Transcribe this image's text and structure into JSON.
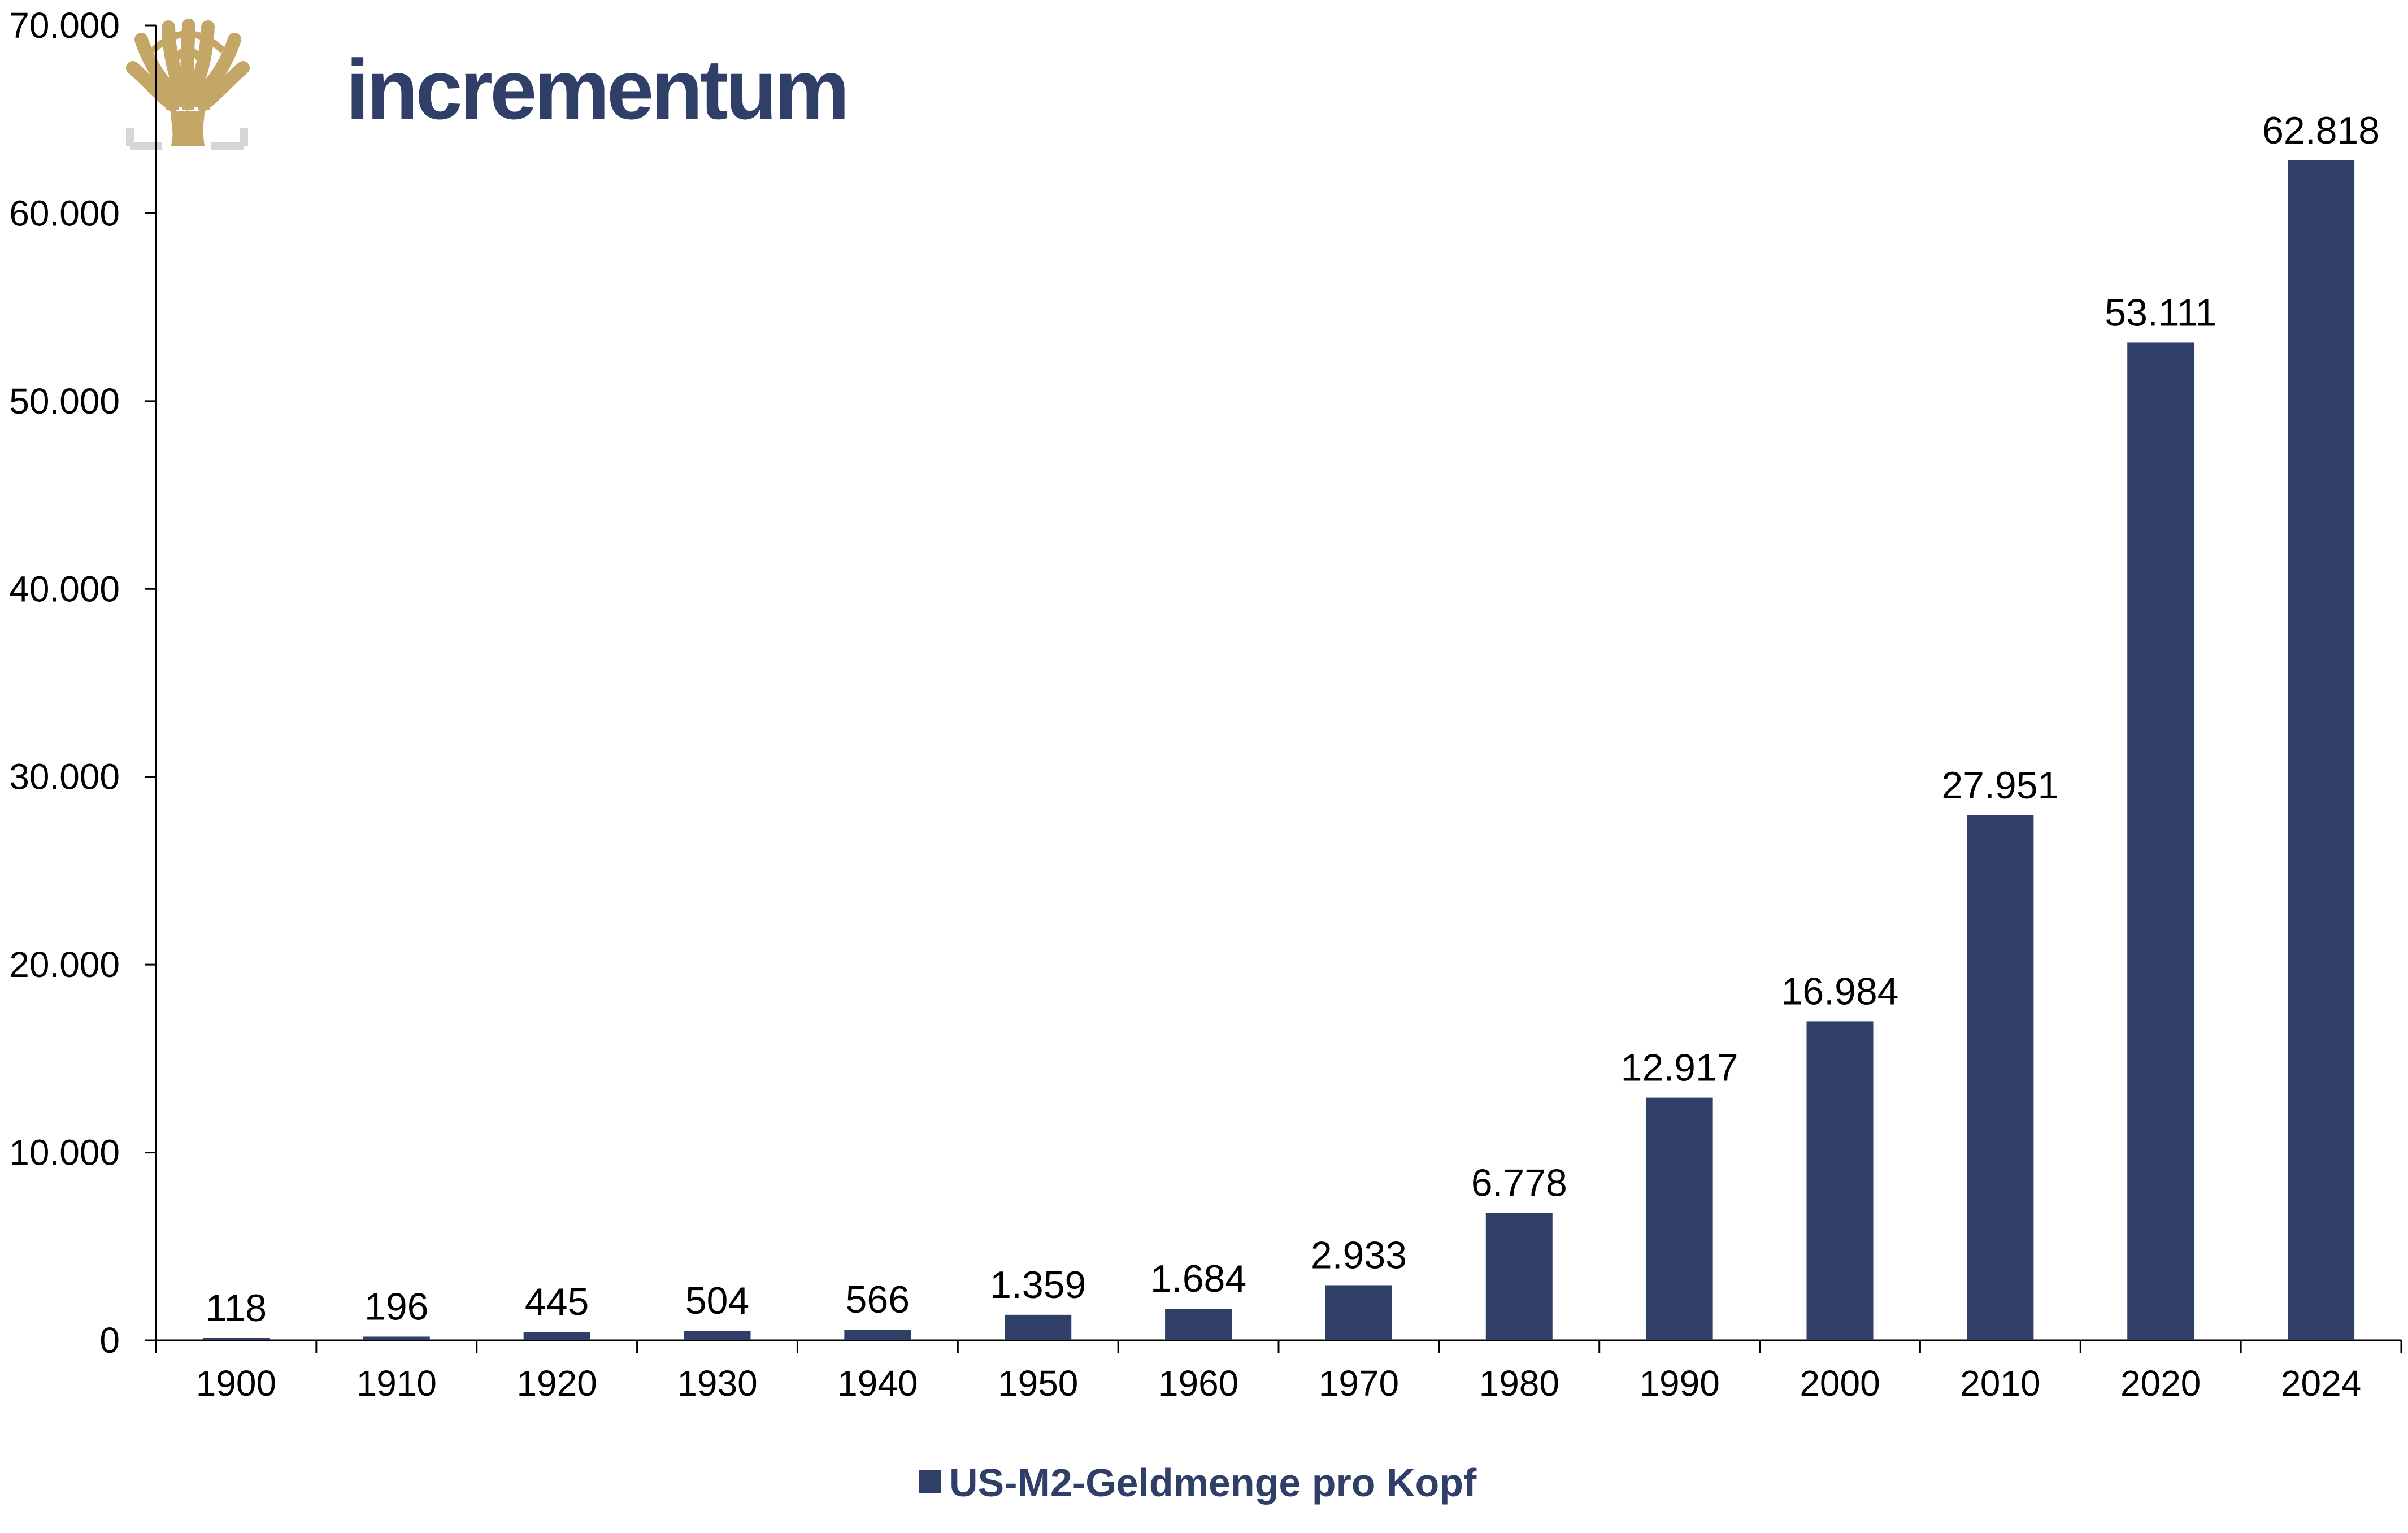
{
  "logo": {
    "text": "incrementum",
    "text_color": "#2f3f67",
    "tree_color": "#c4a667",
    "frame_color": "#d6d6d6"
  },
  "colors": {
    "bar": "#2f3f67",
    "axis": "#000000",
    "label": "#000000"
  },
  "chart_data": {
    "type": "bar",
    "categories": [
      "1900",
      "1910",
      "1920",
      "1930",
      "1940",
      "1950",
      "1960",
      "1970",
      "1980",
      "1990",
      "2000",
      "2010",
      "2020",
      "2024"
    ],
    "series": [
      {
        "name": "US-M2-Geldmenge pro Kopf",
        "values": [
          118,
          196,
          445,
          504,
          566,
          1359,
          1684,
          2933,
          6778,
          12917,
          16984,
          27951,
          53111,
          62818
        ],
        "data_labels": [
          "118",
          "196",
          "445",
          "504",
          "566",
          "1.359",
          "1.684",
          "2.933",
          "6.778",
          "12.917",
          "16.984",
          "27.951",
          "53.111",
          "62.818"
        ]
      }
    ],
    "ylim": [
      0,
      70000
    ],
    "yticks": [
      0,
      10000,
      20000,
      30000,
      40000,
      50000,
      60000,
      70000
    ],
    "ytick_labels": [
      "0",
      "10.000",
      "20.000",
      "30.000",
      "40.000",
      "50.000",
      "60.000",
      "70.000"
    ],
    "title": "",
    "xlabel": "",
    "ylabel": "",
    "grid": false,
    "legend_position": "bottom-center"
  }
}
